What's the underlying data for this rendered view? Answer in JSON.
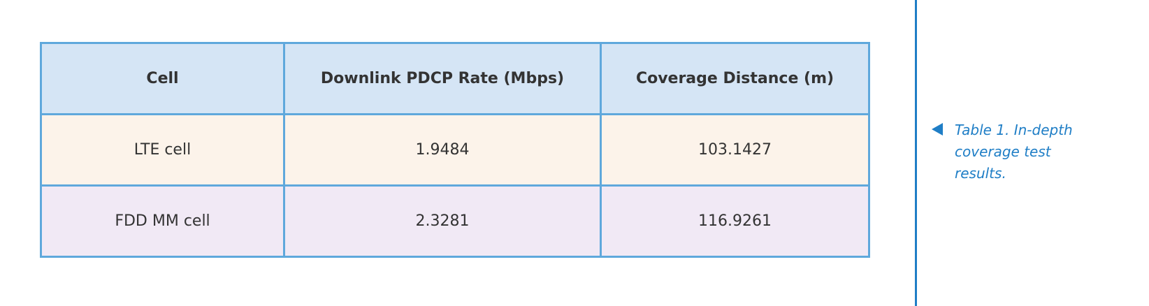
{
  "table": {
    "header": [
      "Cell",
      "Downlink PDCP Rate (Mbps)",
      "Coverage Distance (m)"
    ],
    "rows": [
      [
        "LTE cell",
        "1.9484",
        "103.1427"
      ],
      [
        "FDD MM cell",
        "2.3281",
        "116.9261"
      ]
    ]
  },
  "caption": "Table 1. In-depth coverage test results."
}
